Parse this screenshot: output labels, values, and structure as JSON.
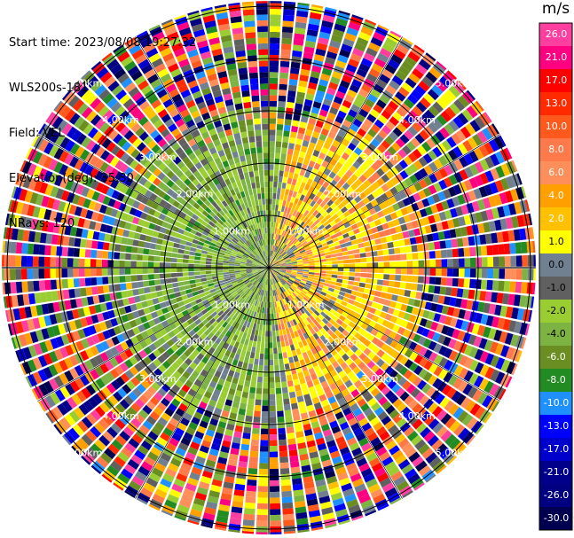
{
  "header": {
    "start_time": "Start time: 2023/08/08 19:27:32",
    "station": "WLS200s-181",
    "field": "Field: VEL",
    "elevation": "Elevation(deg): 35.30",
    "nrays": "NRays: 120"
  },
  "colorbar": {
    "unit": "m/s",
    "ticks": [
      "26.0",
      "21.0",
      "17.0",
      "13.0",
      "10.0",
      "8.0",
      "6.0",
      "4.0",
      "2.0",
      "1.0",
      "0.0",
      "-1.0",
      "-2.0",
      "-4.0",
      "-6.0",
      "-8.0",
      "-10.0",
      "-13.0",
      "-17.0",
      "-21.0",
      "-26.0",
      "-30.0"
    ],
    "colors": [
      "#ff3fa0",
      "#ff0080",
      "#ff0000",
      "#ff2a00",
      "#ff5a1e",
      "#ff7a4a",
      "#ff8f5a",
      "#ffa000",
      "#ffc000",
      "#ffff00",
      "#708090",
      "#606060",
      "#9acd32",
      "#7cb342",
      "#6b8e23",
      "#228b22",
      "#1e90ff",
      "#0000ff",
      "#0000cd",
      "#00008b",
      "#000080",
      "#000050"
    ]
  },
  "chart_data": {
    "type": "heatmap",
    "title": "",
    "projection": "polar PPI",
    "rays": 120,
    "field": "VEL",
    "units": "m/s",
    "range_ring_labels": [
      "1.00km",
      "2.00km",
      "3.00km",
      "4.00km",
      "5.00km"
    ],
    "range_rings_km": [
      1,
      2,
      3,
      4,
      5
    ],
    "max_range_km": 5.1,
    "color_levels": [
      -30,
      -26,
      -21,
      -17,
      -13,
      -10,
      -8,
      -6,
      -4,
      -2,
      -1,
      0,
      1,
      2,
      4,
      6,
      8,
      10,
      13,
      17,
      21,
      26
    ],
    "pattern": "near-zero/negative (green) inner region to the west, positive (yellow/orange) region to the east within ~3 km; noisy multicolored returns beyond ~3 km"
  }
}
